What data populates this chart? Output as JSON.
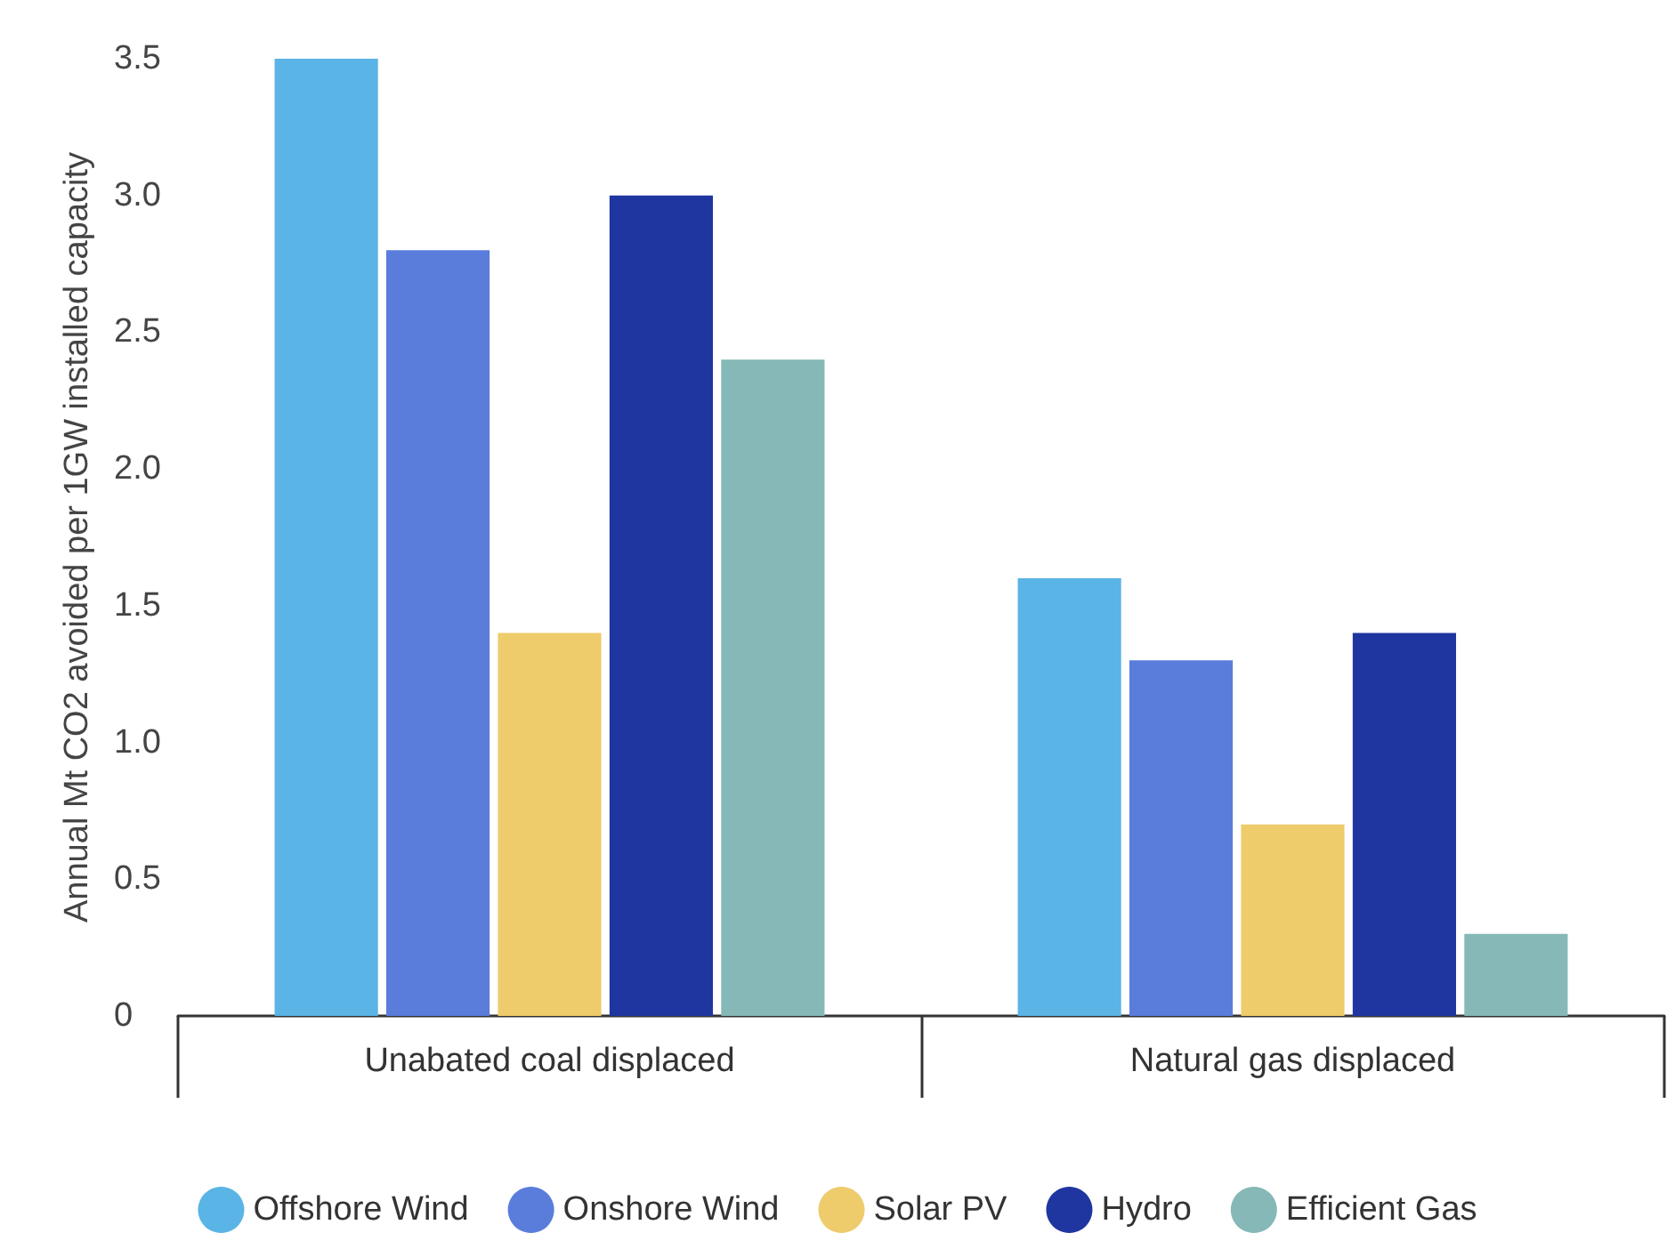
{
  "chart_data": {
    "type": "bar",
    "ylabel": "Annual Mt CO2 avoided per 1GW installed capacity",
    "categories": [
      "Unabated coal displaced",
      "Natural gas displaced"
    ],
    "series": [
      {
        "name": "Offshore Wind",
        "color": "#5ab4e5",
        "values": [
          3.5,
          1.6
        ]
      },
      {
        "name": "Onshore Wind",
        "color": "#5a7ddc",
        "values": [
          2.8,
          1.3
        ]
      },
      {
        "name": "Solar PV",
        "color": "#eecb6b",
        "values": [
          1.4,
          0.7
        ]
      },
      {
        "name": "Hydro",
        "color": "#1f36a0",
        "values": [
          3.0,
          1.4
        ]
      },
      {
        "name": "Efficient Gas",
        "color": "#85b8b6",
        "values": [
          2.4,
          0.3
        ]
      }
    ],
    "ylim": [
      0,
      3.5
    ],
    "yticks": [
      0,
      0.5,
      {
        "value": 1,
        "label": "1.0"
      },
      1.5,
      {
        "value": 2,
        "label": "2.0"
      },
      2.5,
      {
        "value": 3,
        "label": "3.0"
      },
      3.5
    ],
    "grid": false,
    "legend": "bottom"
  }
}
